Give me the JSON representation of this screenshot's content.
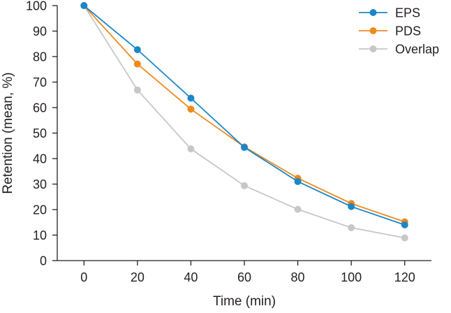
{
  "chart_data": {
    "type": "line",
    "title": "",
    "xlabel": "Time (min)",
    "ylabel": "Retention (mean, %)",
    "x": [
      0,
      20,
      40,
      60,
      80,
      100,
      120
    ],
    "xlim": [
      -10,
      130
    ],
    "ylim": [
      0,
      100
    ],
    "xticks": [
      0,
      20,
      40,
      60,
      80,
      100,
      120
    ],
    "yticks": [
      0,
      10,
      20,
      30,
      40,
      50,
      60,
      70,
      80,
      90,
      100
    ],
    "grid": false,
    "legend_position": "top-right",
    "series": [
      {
        "name": "EPS",
        "color": "#1b87c9",
        "values": [
          100,
          82.7,
          63.7,
          44.4,
          31.0,
          21.2,
          14.0
        ]
      },
      {
        "name": "PDS",
        "color": "#f08a1c",
        "values": [
          100,
          77.1,
          59.4,
          44.6,
          32.3,
          22.4,
          15.2
        ]
      },
      {
        "name": "Overlap",
        "color": "#c7c7c7",
        "values": [
          100,
          66.9,
          43.8,
          29.4,
          20.1,
          12.9,
          8.9
        ]
      }
    ]
  }
}
